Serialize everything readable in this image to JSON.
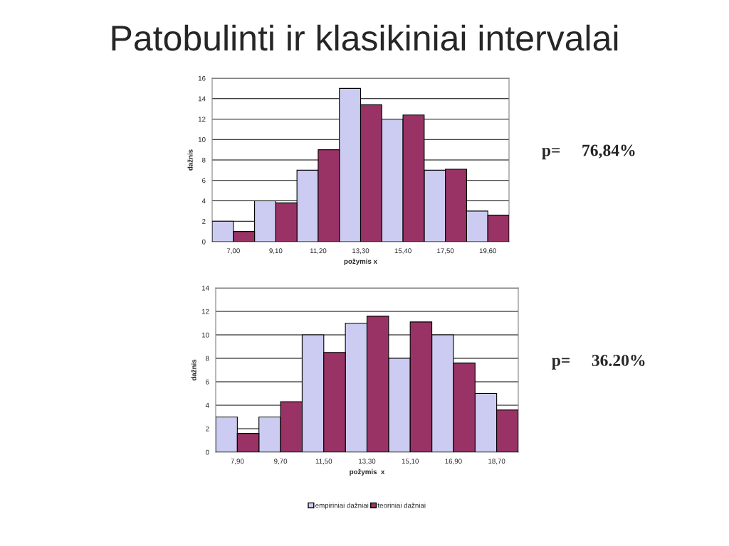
{
  "chart_data": [
    {
      "type": "bar",
      "title": "Patobulinti ir klasikiniai intervalai",
      "xlabel": "požymis x",
      "ylabel": "dažnis",
      "categories": [
        "7,00",
        "9,10",
        "11,20",
        "13,30",
        "15,40",
        "17,50",
        "19,60"
      ],
      "series": [
        {
          "color": "#ccccf2",
          "values": [
            2,
            4,
            7,
            15,
            12,
            7,
            3
          ]
        },
        {
          "color": "#993366",
          "values": [
            1,
            3.8,
            9,
            13.4,
            12.4,
            7.1,
            2.6
          ]
        }
      ],
      "ylim": [
        0,
        16
      ],
      "yticks": [
        0,
        2,
        4,
        6,
        8,
        10,
        12,
        14,
        16
      ],
      "grid": "y",
      "annotations": [
        "p=     76,84%"
      ]
    },
    {
      "type": "bar",
      "xlabel": "požymis  x",
      "ylabel": "dažnis",
      "categories": [
        "7,90",
        "9,70",
        "11,50",
        "13,30",
        "15,10",
        "16,90",
        "18,70"
      ],
      "series": [
        {
          "name": "empiriniai dažniai",
          "color": "#ccccf2",
          "values": [
            3,
            3,
            10,
            11,
            8,
            10,
            5
          ]
        },
        {
          "name": "teoriniai dažniai",
          "color": "#993366",
          "values": [
            1.6,
            4.3,
            8.5,
            11.6,
            11.1,
            7.6,
            3.6
          ]
        }
      ],
      "ylim": [
        0,
        14
      ],
      "yticks": [
        0,
        2,
        4,
        6,
        8,
        10,
        12,
        14
      ],
      "grid": "y",
      "legend": "bottom",
      "annotations": [
        "p=     36.20%"
      ]
    }
  ]
}
